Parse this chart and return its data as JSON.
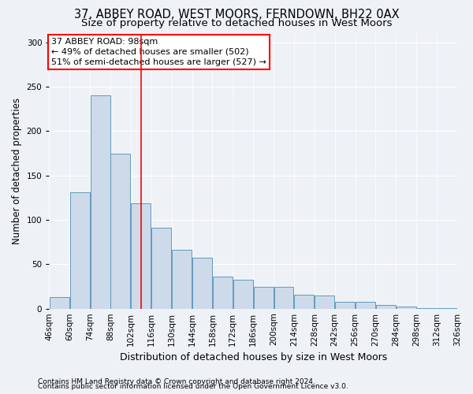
{
  "title_line1": "37, ABBEY ROAD, WEST MOORS, FERNDOWN, BH22 0AX",
  "title_line2": "Size of property relative to detached houses in West Moors",
  "xlabel": "Distribution of detached houses by size in West Moors",
  "ylabel": "Number of detached properties",
  "footnote1": "Contains HM Land Registry data © Crown copyright and database right 2024.",
  "footnote2": "Contains public sector information licensed under the Open Government Licence v3.0.",
  "annotation_title": "37 ABBEY ROAD: 98sqm",
  "annotation_line2": "← 49% of detached houses are smaller (502)",
  "annotation_line3": "51% of semi-detached houses are larger (527) →",
  "bin_starts": [
    46,
    60,
    74,
    88,
    102,
    116,
    130,
    144,
    158,
    172,
    186,
    200,
    214,
    228,
    242,
    256,
    270,
    284,
    298,
    312
  ],
  "bar_heights": [
    13,
    131,
    240,
    175,
    119,
    91,
    66,
    57,
    36,
    33,
    25,
    25,
    16,
    15,
    8,
    8,
    4,
    2,
    1,
    1
  ],
  "bin_width": 14,
  "bar_color": "#cddaea",
  "bar_edge_color": "#6699bb",
  "vline_color": "red",
  "vline_x": 102,
  "ylim": [
    0,
    310
  ],
  "yticks": [
    0,
    50,
    100,
    150,
    200,
    250,
    300
  ],
  "background_color": "#eef2f7",
  "grid_color": "#ffffff",
  "title_fontsize": 10.5,
  "subtitle_fontsize": 9.5,
  "ylabel_fontsize": 8.5,
  "xlabel_fontsize": 9,
  "tick_fontsize": 7.5,
  "annot_fontsize": 8,
  "footnote_fontsize": 6.5
}
